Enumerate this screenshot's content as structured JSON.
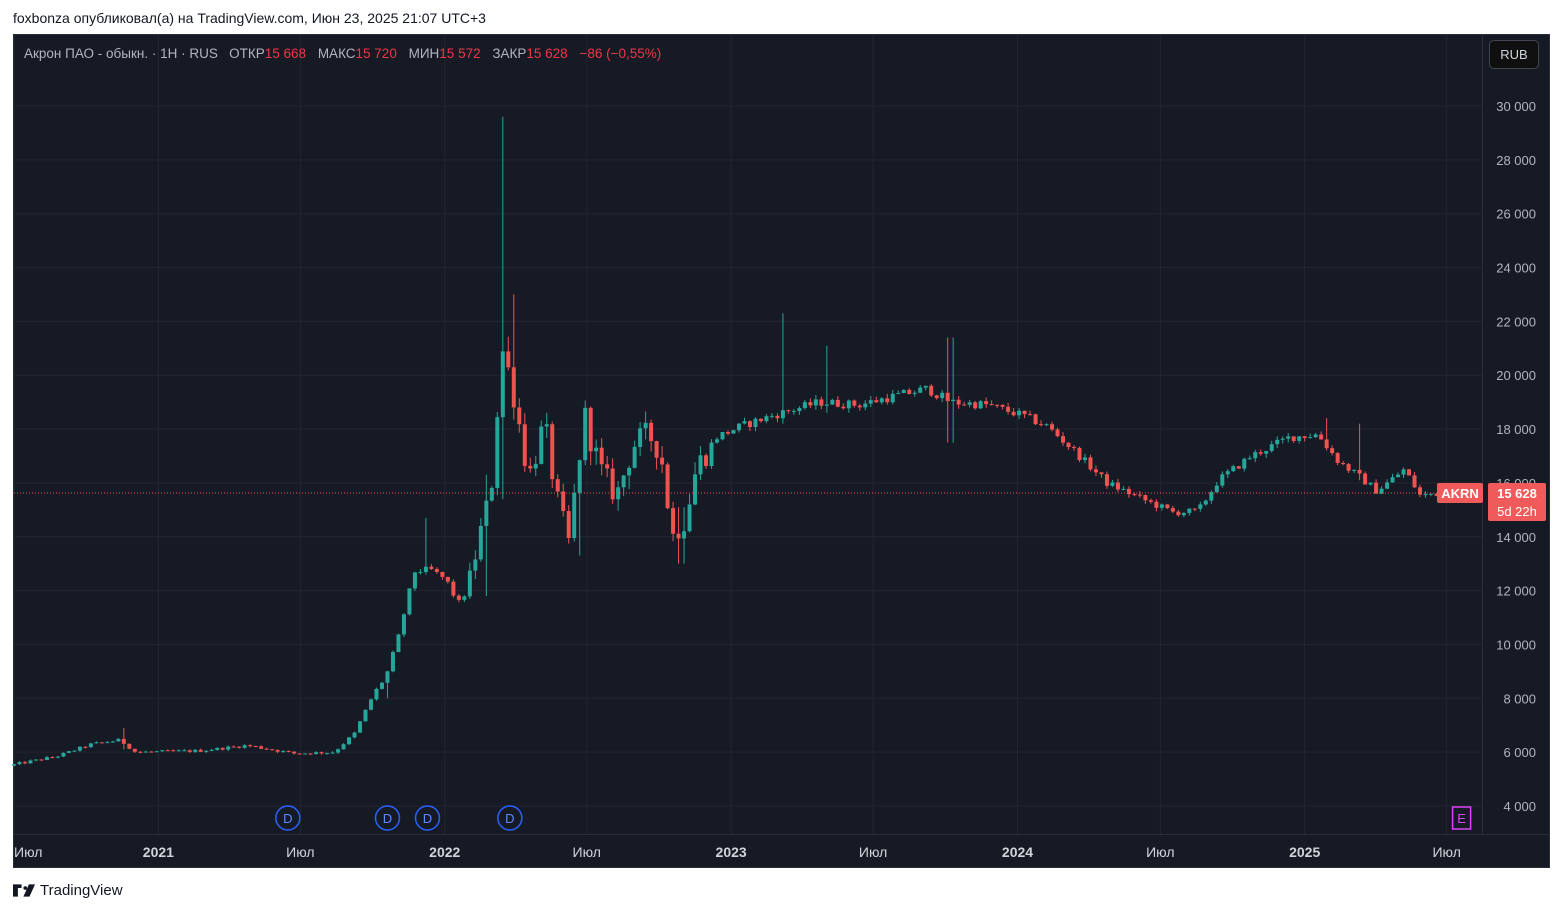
{
  "caption": "foxbonza опубликовал(а) на TradingView.com, Июн 23, 2025 21:07 UTC+3",
  "legend": {
    "symbol_desc": "Акрон ПАО - обыкн. · 1Н · RUS",
    "open_label": "ОТКР",
    "open_value": "15 668",
    "high_label": "МАКС",
    "high_value": "15 720",
    "low_label": "МИН",
    "low_value": "15 572",
    "close_label": "ЗАКР",
    "close_value": "15 628",
    "change": "−86 (−0,55%)"
  },
  "currency": "RUB",
  "ticker_badge": {
    "symbol": "AKRN",
    "price": "15 628",
    "countdown": "5d 22h"
  },
  "footer": {
    "brand": "TradingView"
  },
  "colors": {
    "up": "#26a69a",
    "down": "#ef5350",
    "background": "#161a25",
    "grid": "#232632",
    "accent_badge": "#f05a5a"
  },
  "chart_data": {
    "type": "candlestick",
    "symbol": "AKRN",
    "y_ticks": [
      "4 000",
      "6 000",
      "8 000",
      "10 000",
      "12 000",
      "14 000",
      "16 000",
      "18 000",
      "20 000",
      "22 000",
      "24 000",
      "26 000",
      "28 000",
      "30 000"
    ],
    "y_tick_values": [
      4000,
      6000,
      8000,
      10000,
      12000,
      14000,
      16000,
      18000,
      20000,
      22000,
      24000,
      26000,
      28000,
      30000
    ],
    "ylim": [
      3100,
      31000
    ],
    "x_range": [
      "2020-07-01",
      "2025-08-15"
    ],
    "x_ticks": [
      {
        "label": "Июл",
        "date": "2020-07-01",
        "bold": false
      },
      {
        "label": "2021",
        "date": "2021-01-01",
        "bold": true
      },
      {
        "label": "Июл",
        "date": "2021-07-01",
        "bold": false
      },
      {
        "label": "2022",
        "date": "2022-01-01",
        "bold": true
      },
      {
        "label": "Июл",
        "date": "2022-07-01",
        "bold": false
      },
      {
        "label": "2023",
        "date": "2023-01-01",
        "bold": true
      },
      {
        "label": "Июл",
        "date": "2023-07-01",
        "bold": false
      },
      {
        "label": "2024",
        "date": "2024-01-01",
        "bold": true
      },
      {
        "label": "Июл",
        "date": "2024-07-01",
        "bold": false
      },
      {
        "label": "2025",
        "date": "2025-01-01",
        "bold": true
      },
      {
        "label": "Июл",
        "date": "2025-07-01",
        "bold": false
      }
    ],
    "last_price": 15628,
    "dividend_markers": [
      {
        "label": "D",
        "date": "2021-06-15"
      },
      {
        "label": "D",
        "date": "2021-10-20"
      },
      {
        "label": "D",
        "date": "2021-12-10"
      },
      {
        "label": "D",
        "date": "2022-03-25"
      }
    ],
    "earnings_markers": [
      {
        "label": "E",
        "date": "2025-07-20"
      }
    ],
    "close_anchors": [
      [
        "2020-07-01",
        5500
      ],
      [
        "2020-09-01",
        5850
      ],
      [
        "2020-10-15",
        6300
      ],
      [
        "2020-11-20",
        6450
      ],
      [
        "2020-12-10",
        6000
      ],
      [
        "2021-03-01",
        6050
      ],
      [
        "2021-05-01",
        6250
      ],
      [
        "2021-07-01",
        5950
      ],
      [
        "2021-08-20",
        6000
      ],
      [
        "2021-09-15",
        6700
      ],
      [
        "2021-10-10",
        8200
      ],
      [
        "2021-10-25",
        8800
      ],
      [
        "2021-11-10",
        10300
      ],
      [
        "2021-11-30",
        12700
      ],
      [
        "2021-12-20",
        12800
      ],
      [
        "2022-01-10",
        12400
      ],
      [
        "2022-01-25",
        11500
      ],
      [
        "2022-02-10",
        12500
      ],
      [
        "2022-02-25",
        14500
      ],
      [
        "2022-03-08",
        15700
      ],
      [
        "2022-03-22",
        21000
      ],
      [
        "2022-04-05",
        19500
      ],
      [
        "2022-04-25",
        16200
      ],
      [
        "2022-05-15",
        18200
      ],
      [
        "2022-05-30",
        15500
      ],
      [
        "2022-06-15",
        13800
      ],
      [
        "2022-07-05",
        18500
      ],
      [
        "2022-07-25",
        16500
      ],
      [
        "2022-08-15",
        15500
      ],
      [
        "2022-09-05",
        17400
      ],
      [
        "2022-09-25",
        17800
      ],
      [
        "2022-10-10",
        17200
      ],
      [
        "2022-10-25",
        14000
      ],
      [
        "2022-11-10",
        14600
      ],
      [
        "2022-11-25",
        16600
      ],
      [
        "2022-12-20",
        17700
      ],
      [
        "2023-01-20",
        18100
      ],
      [
        "2023-03-01",
        18500
      ],
      [
        "2023-05-01",
        19000
      ],
      [
        "2023-06-20",
        18900
      ],
      [
        "2023-08-01",
        19200
      ],
      [
        "2023-09-15",
        19500
      ],
      [
        "2023-10-15",
        19000
      ],
      [
        "2023-12-01",
        18900
      ],
      [
        "2024-01-15",
        18500
      ],
      [
        "2024-02-15",
        18100
      ],
      [
        "2024-03-20",
        17200
      ],
      [
        "2024-05-01",
        16000
      ],
      [
        "2024-06-15",
        15400
      ],
      [
        "2024-07-25",
        14900
      ],
      [
        "2024-08-25",
        14950
      ],
      [
        "2024-09-20",
        16100
      ],
      [
        "2024-11-01",
        17000
      ],
      [
        "2024-12-20",
        17700
      ],
      [
        "2025-01-25",
        17800
      ],
      [
        "2025-02-20",
        16800
      ],
      [
        "2025-03-20",
        16200
      ],
      [
        "2025-04-10",
        15700
      ],
      [
        "2025-05-15",
        16500
      ],
      [
        "2025-06-05",
        15500
      ],
      [
        "2025-06-23",
        15628
      ]
    ],
    "wick_spikes": [
      {
        "date": "2020-11-20",
        "high": 6900,
        "low": 6100
      },
      {
        "date": "2021-10-20",
        "high": 8700,
        "low": 8000
      },
      {
        "date": "2021-12-08",
        "high": 14700,
        "low": 12600
      },
      {
        "date": "2022-02-22",
        "high": 16300,
        "low": 11800
      },
      {
        "date": "2022-03-15",
        "high": 29600,
        "low": 15400
      },
      {
        "date": "2022-04-01",
        "high": 23000,
        "low": 19500
      },
      {
        "date": "2022-06-20",
        "high": 14500,
        "low": 13300
      },
      {
        "date": "2022-10-30",
        "high": 15100,
        "low": 13000
      },
      {
        "date": "2023-03-10",
        "high": 22300,
        "low": 18200
      },
      {
        "date": "2023-05-05",
        "high": 21100,
        "low": 18600
      },
      {
        "date": "2023-10-08",
        "high": 21400,
        "low": 17500
      },
      {
        "date": "2025-01-28",
        "high": 18400,
        "low": 17200
      },
      {
        "date": "2025-03-14",
        "high": 18200,
        "low": 16100
      }
    ]
  }
}
